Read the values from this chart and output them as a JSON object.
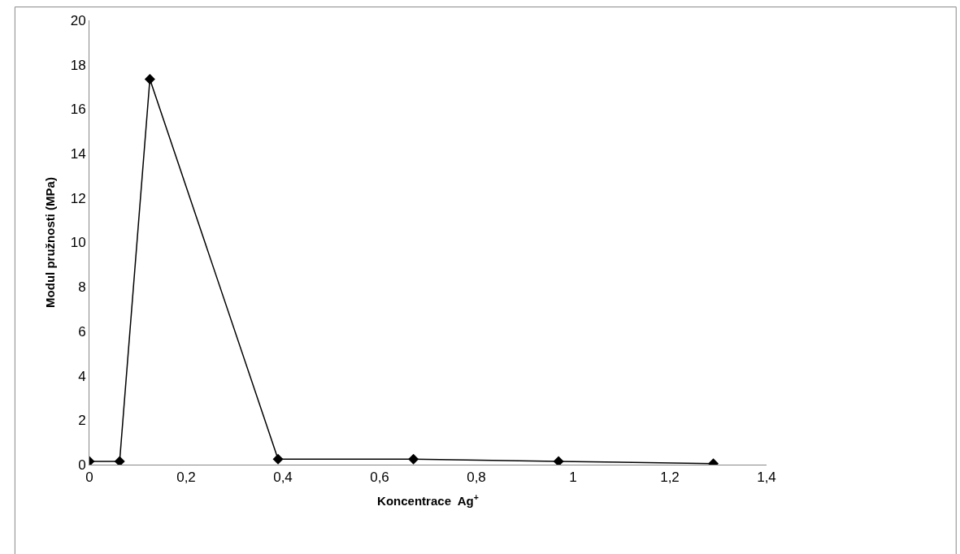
{
  "chart_data": {
    "type": "line",
    "xlabel": "Koncentrace  Ag$^{+}$",
    "ylabel": "Modul pružnosti (MPa)",
    "x": [
      0,
      0.0625,
      0.125,
      0.39,
      0.67,
      0.97,
      1.29
    ],
    "series": [
      {
        "color": "#000000",
        "values": [
          0.15,
          0.15,
          17.35,
          0.25,
          0.25,
          0.15,
          0.05
        ]
      }
    ],
    "xlim": [
      0,
      1.4
    ],
    "xticks": [
      0,
      {
        "value": 0.2,
        "label": "0,2"
      },
      {
        "value": 0.4,
        "label": "0,4"
      },
      {
        "value": 0.6,
        "label": "0,6"
      },
      {
        "value": 0.8,
        "label": "0,8"
      },
      1,
      {
        "value": 1.2,
        "label": "1,2"
      },
      {
        "value": 1.4,
        "label": "1,4"
      }
    ],
    "ylim": [
      0,
      20
    ],
    "yticks": [
      0,
      2,
      4,
      6,
      8,
      10,
      12,
      14,
      16,
      18,
      20
    ],
    "marker": "diamond",
    "line_style": "solid"
  }
}
